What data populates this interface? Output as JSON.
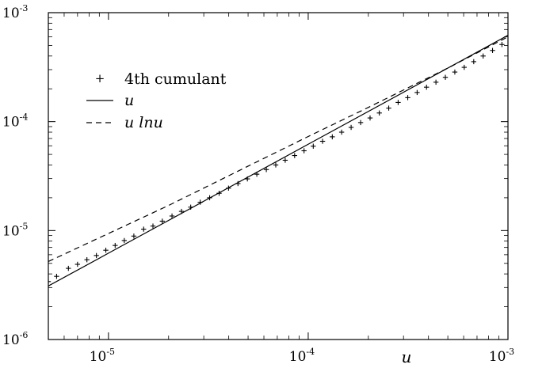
{
  "chart_data": {
    "type": "line",
    "title": "",
    "xlabel": "u",
    "ylabel": "",
    "xscale": "log",
    "yscale": "log",
    "xlim": [
      5e-06,
      0.001
    ],
    "ylim": [
      1e-06,
      0.001
    ],
    "grid": false,
    "legend_position": "top-left",
    "x_ticks": [
      {
        "value": 1e-05,
        "base": "10",
        "exp": "-5"
      },
      {
        "value": 0.0001,
        "base": "10",
        "exp": "-4"
      },
      {
        "value": 0.001,
        "base": "10",
        "exp": "-3"
      }
    ],
    "y_ticks": [
      {
        "value": 1e-06,
        "base": "10",
        "exp": "-6"
      },
      {
        "value": 1e-05,
        "base": "10",
        "exp": "-5"
      },
      {
        "value": 0.0001,
        "base": "10",
        "exp": "-4"
      },
      {
        "value": 0.001,
        "base": "10",
        "exp": "-3"
      }
    ],
    "series": [
      {
        "name": "4th cumulant",
        "style": "plus-markers",
        "x": [
          5e-06,
          5.5e-06,
          6.3e-06,
          7e-06,
          7.8e-06,
          8.7e-06,
          9.7e-06,
          1.08e-05,
          1.2e-05,
          1.34e-05,
          1.5e-05,
          1.67e-05,
          1.86e-05,
          2.08e-05,
          2.32e-05,
          2.58e-05,
          2.88e-05,
          3.21e-05,
          3.58e-05,
          3.99e-05,
          4.45e-05,
          4.96e-05,
          5.53e-05,
          6.17e-05,
          6.88e-05,
          7.67e-05,
          8.55e-05,
          9.53e-05,
          0.000106,
          0.000118,
          0.000132,
          0.000147,
          0.000164,
          0.000183,
          0.000204,
          0.000227,
          0.000253,
          0.000282,
          0.000315,
          0.000351,
          0.000391,
          0.000436,
          0.000486,
          0.000542,
          0.000604,
          0.000674,
          0.000751,
          0.000837,
          0.000933
        ],
        "values": [
          3.4e-06,
          3.8e-06,
          4.5e-06,
          4.9e-06,
          5.4e-06,
          5.9e-06,
          6.6e-06,
          7.3e-06,
          8.1e-06,
          8.9e-06,
          1.03e-05,
          1.1e-05,
          1.22e-05,
          1.36e-05,
          1.5e-05,
          1.64e-05,
          1.82e-05,
          2e-05,
          2.2e-05,
          2.45e-05,
          2.7e-05,
          2.98e-05,
          3.29e-05,
          3.63e-05,
          4e-05,
          4.42e-05,
          4.88e-05,
          5.4e-05,
          5.95e-05,
          6.6e-05,
          7.25e-05,
          8e-05,
          8.85e-05,
          9.8e-05,
          0.000108,
          0.00012,
          0.000133,
          0.00015,
          0.000166,
          0.000185,
          0.000207,
          0.00023,
          0.000255,
          0.000285,
          0.000315,
          0.000355,
          0.0004,
          0.00045,
          0.00051
        ]
      },
      {
        "name": "u",
        "style": "solid",
        "x": [
          5e-06,
          1e-05,
          0.0001,
          0.001
        ],
        "values": [
          3.1e-06,
          6.2e-06,
          6.2e-05,
          0.00062
        ]
      },
      {
        "name": "u lnu",
        "style": "dashed",
        "x": [
          5e-06,
          1e-05,
          2e-05,
          5e-05,
          0.0001,
          0.0002,
          0.0003,
          0.0005,
          0.001
        ],
        "values": [
          5.2e-06,
          9.4e-06,
          1.7e-05,
          3.9e-05,
          7.3e-05,
          0.000135,
          0.000195,
          0.00031,
          0.0006
        ]
      }
    ]
  }
}
